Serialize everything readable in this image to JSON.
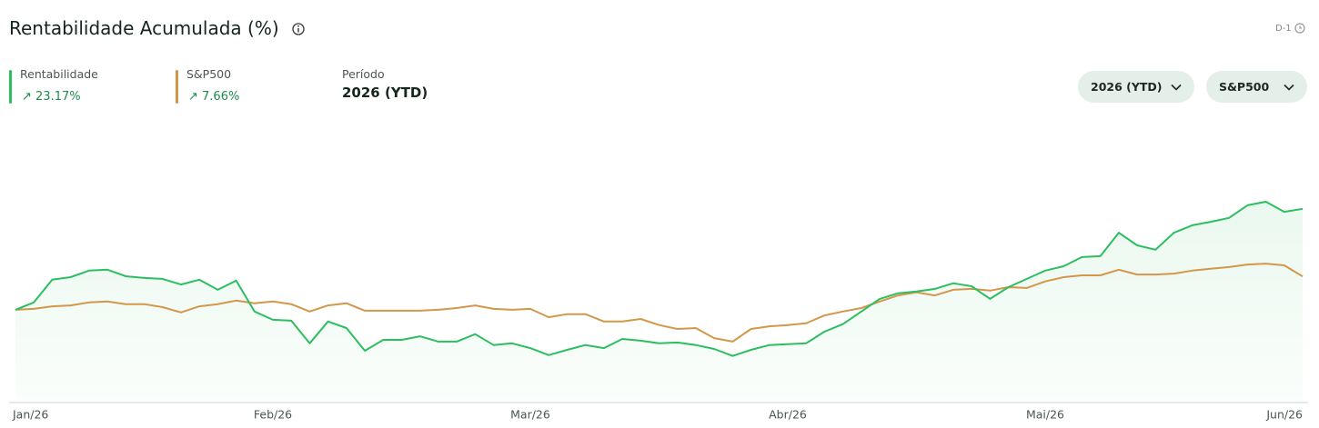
{
  "chart_data": {
    "type": "line",
    "title": "Rentabilidade Acumulada (%)",
    "categories": [
      "Jan/26",
      null,
      null,
      null,
      null,
      null,
      null,
      null,
      null,
      null,
      null,
      null,
      null,
      null,
      "Feb/26",
      null,
      null,
      null,
      null,
      null,
      null,
      null,
      null,
      null,
      null,
      null,
      null,
      null,
      "Mar/26",
      null,
      null,
      null,
      null,
      null,
      null,
      null,
      null,
      null,
      null,
      null,
      null,
      null,
      "Abr/26",
      null,
      null,
      null,
      null,
      null,
      null,
      null,
      null,
      null,
      null,
      null,
      null,
      null,
      "Mai/26",
      null,
      null,
      null,
      null,
      null,
      null,
      null,
      null,
      null,
      null,
      null,
      null,
      null,
      "Jun/26"
    ],
    "series": [
      {
        "name": "Rentabilidade",
        "color": "#2dbe60",
        "change_label": "23.17%",
        "area": true,
        "values": [
          0,
          1.7,
          6.9,
          7.5,
          9.0,
          9.2,
          7.7,
          7.3,
          7.1,
          5.8,
          6.9,
          4.6,
          6.7,
          -0.4,
          -2.3,
          -2.5,
          -7.7,
          -2.7,
          -4.2,
          -9.4,
          -6.9,
          -6.9,
          -6.1,
          -7.3,
          -7.3,
          -5.6,
          -8.1,
          -7.7,
          -8.8,
          -10.4,
          -9.2,
          -8.1,
          -8.8,
          -6.7,
          -7.1,
          -7.7,
          -7.5,
          -8.1,
          -9.0,
          -10.6,
          -9.2,
          -8.1,
          -7.9,
          -7.7,
          -5.0,
          -3.3,
          -0.4,
          2.5,
          3.8,
          4.2,
          4.8,
          6.1,
          5.4,
          2.5,
          5.2,
          7.1,
          9.0,
          10.0,
          12.1,
          12.3,
          17.7,
          14.8,
          13.8,
          17.7,
          19.4,
          20.2,
          21.1,
          24.0,
          24.8,
          22.5,
          23.17
        ]
      },
      {
        "name": "S&P500",
        "color": "#d4974a",
        "change_label": "7.66%",
        "area": false,
        "values": [
          0,
          0.2,
          0.8,
          1.0,
          1.7,
          1.9,
          1.3,
          1.3,
          0.6,
          -0.6,
          0.8,
          1.3,
          2.1,
          1.5,
          1.9,
          1.3,
          -0.4,
          1.0,
          1.5,
          -0.2,
          -0.2,
          -0.2,
          -0.2,
          0.0,
          0.4,
          1.0,
          0.2,
          0.0,
          0.2,
          -1.7,
          -1.0,
          -1.0,
          -2.7,
          -2.7,
          -2.1,
          -3.5,
          -4.4,
          -4.2,
          -6.5,
          -7.3,
          -4.4,
          -3.8,
          -3.5,
          -3.1,
          -1.3,
          -0.4,
          0.4,
          1.9,
          3.3,
          4.0,
          3.3,
          4.6,
          4.8,
          4.4,
          5.2,
          5.0,
          6.5,
          7.5,
          7.9,
          7.9,
          9.2,
          8.1,
          8.1,
          8.3,
          9.0,
          9.4,
          9.8,
          10.4,
          10.6,
          10.2,
          7.66
        ]
      }
    ],
    "ylim": [
      -21.3,
      44
    ],
    "grid": false
  },
  "header": {
    "badge": "D-1"
  },
  "period": {
    "label": "Período",
    "value": "2026 (YTD)"
  },
  "controls": {
    "period_select": "2026 (YTD)",
    "benchmark_select": "S&P500"
  }
}
